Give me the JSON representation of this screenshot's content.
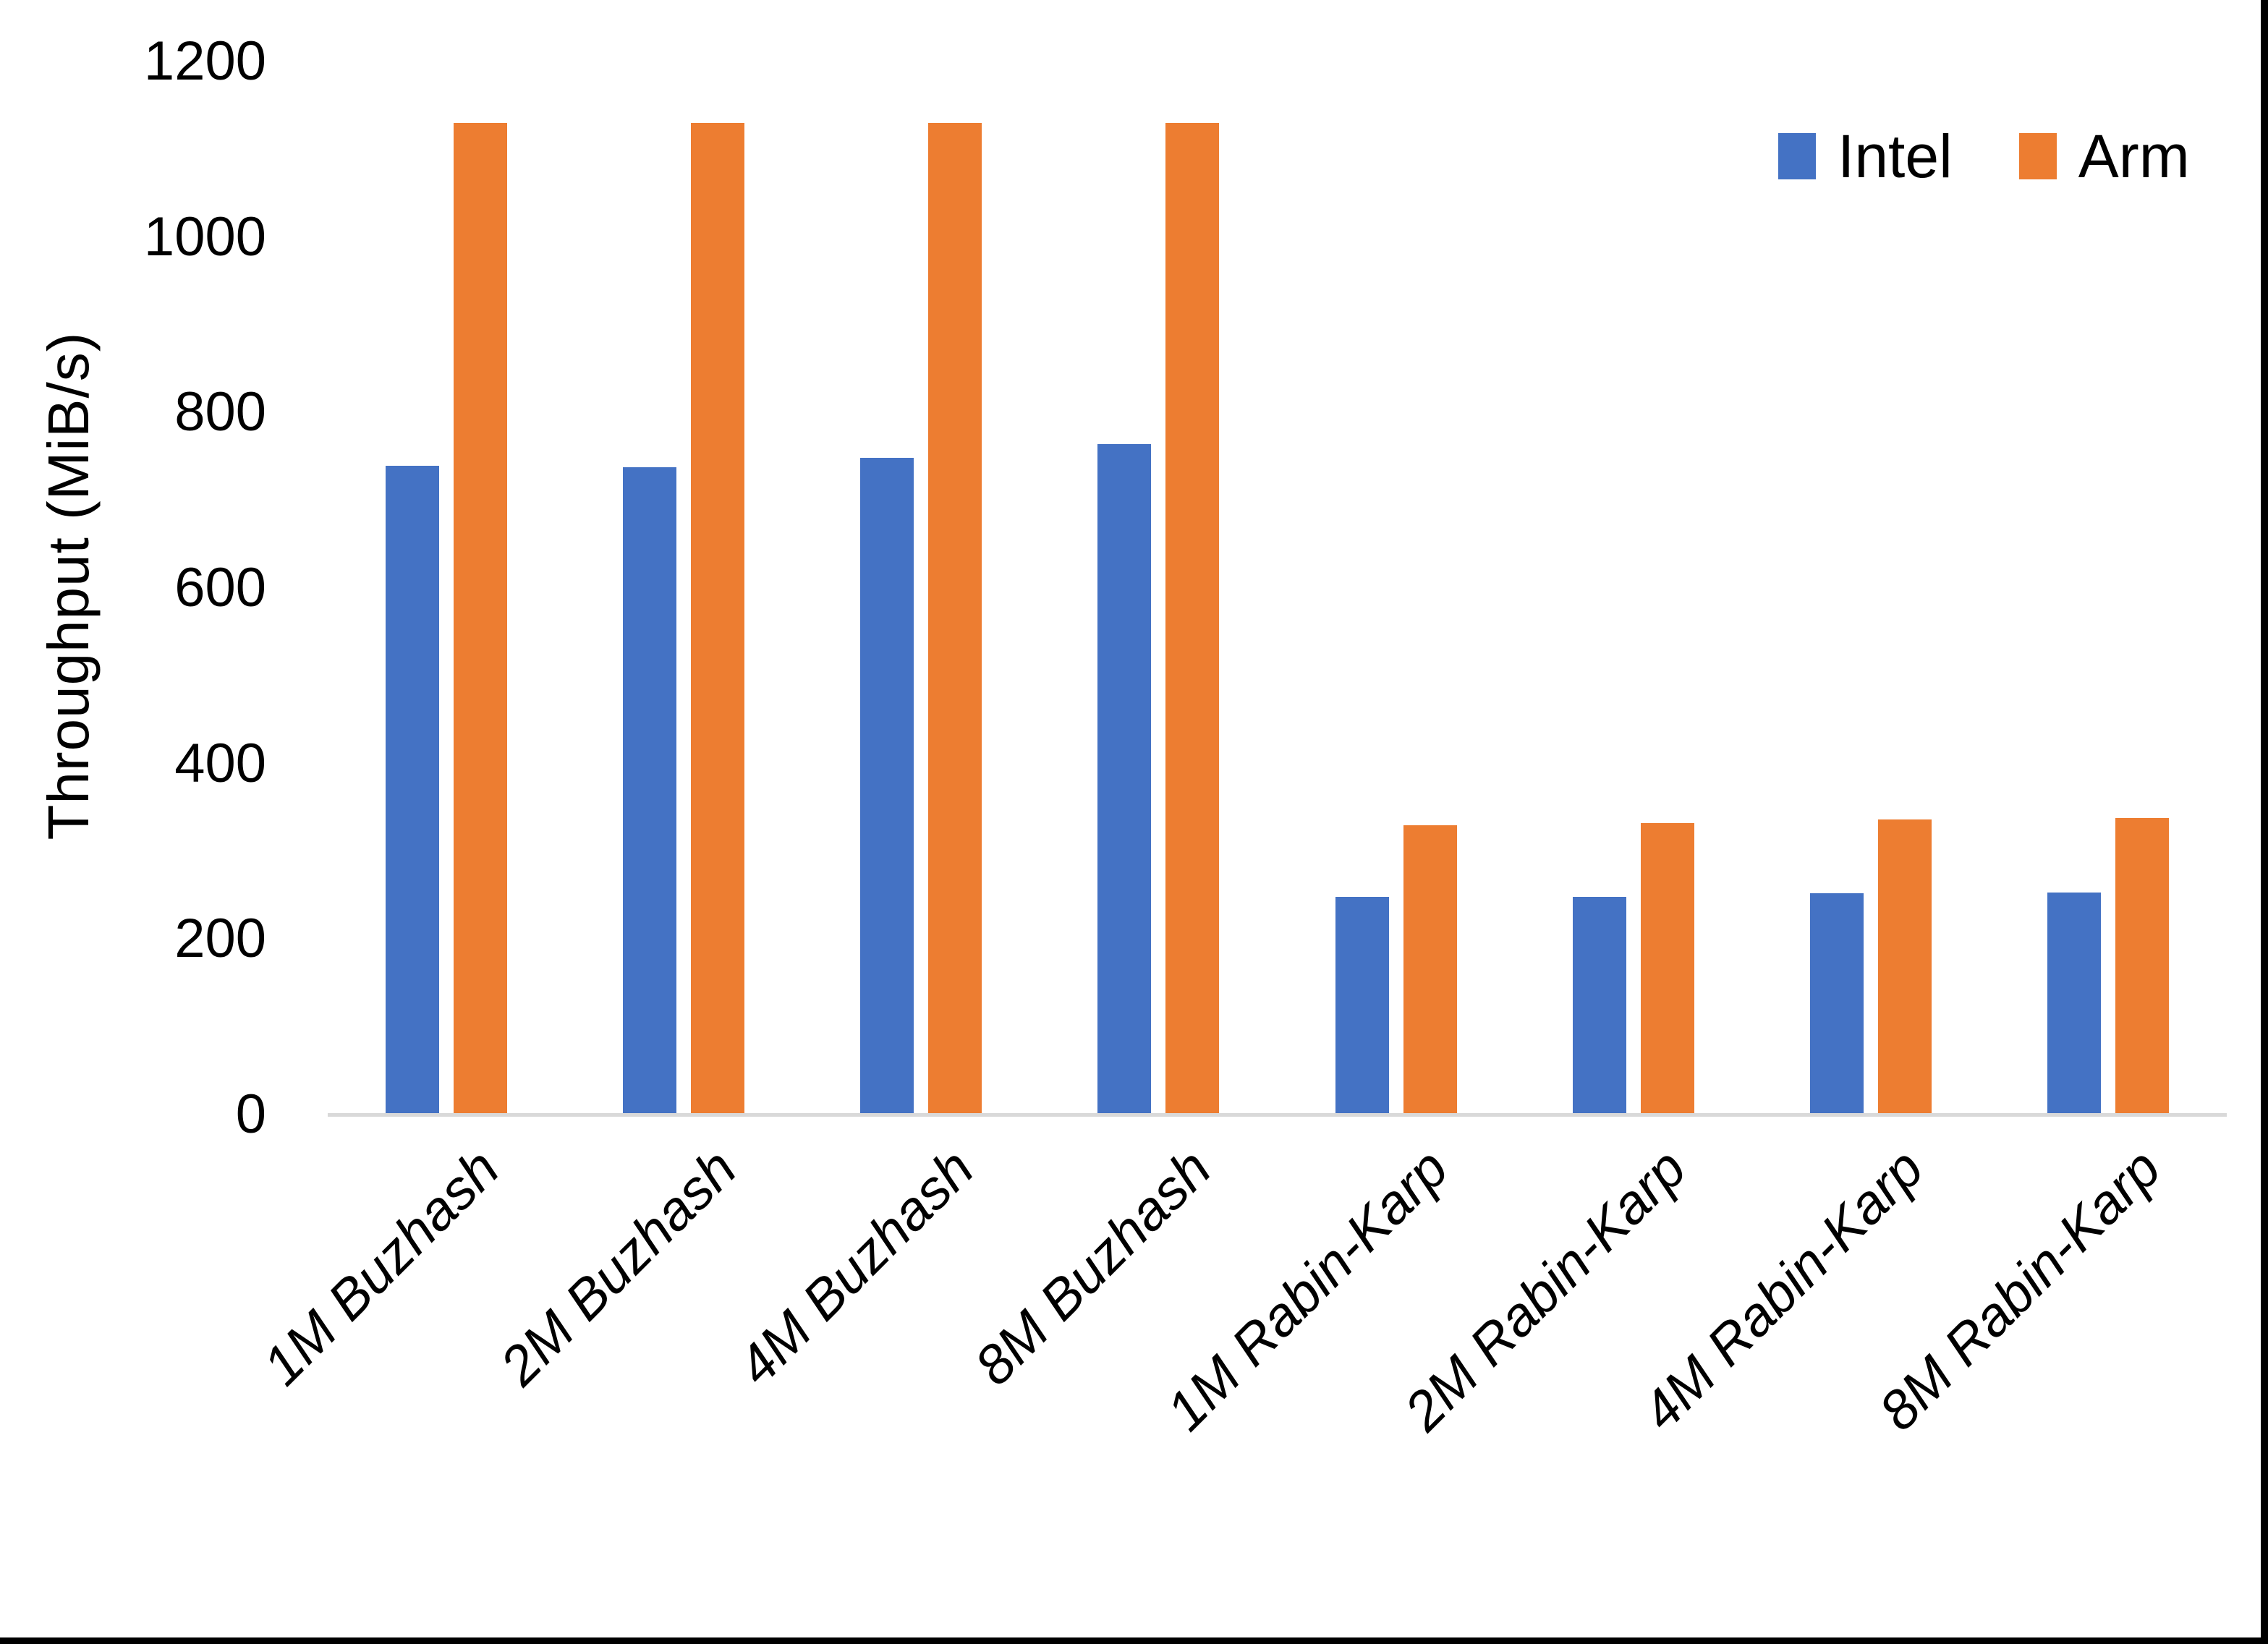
{
  "chart_data": {
    "type": "bar",
    "title": "",
    "xlabel": "",
    "ylabel": "Throughput (MiB/s)",
    "ylim": [
      0,
      1200
    ],
    "yticks": [
      0,
      200,
      400,
      600,
      800,
      1000,
      1200
    ],
    "grid": false,
    "legend_position": "top-right",
    "categories": [
      "1M Buzhash",
      "2M Buzhash",
      "4M Buzhash",
      "8M Buzhash",
      "1M Rabin-Karp",
      "2M Rabin-Karp",
      "4M Rabin-Karp",
      "8M Rabin-Karp"
    ],
    "series": [
      {
        "name": "Intel",
        "color": "#4472C4",
        "values": [
          739,
          738,
          748,
          764,
          248,
          248,
          252,
          253
        ]
      },
      {
        "name": "Arm",
        "color": "#ED7D31",
        "values": [
          1130,
          1130,
          1130,
          1130,
          330,
          332,
          336,
          338
        ]
      }
    ]
  },
  "colors": {
    "background": "#FFFFFF",
    "text": "#000000",
    "axis_line": "#D9D9D9",
    "frame_border": "#000000",
    "intel": "#4472C4",
    "arm": "#ED7D31"
  }
}
